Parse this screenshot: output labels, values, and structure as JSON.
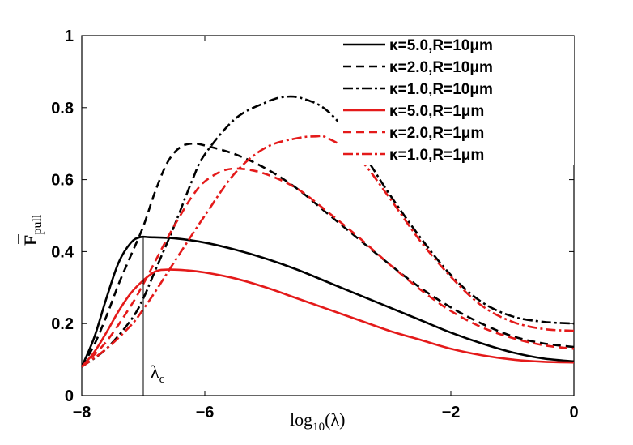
{
  "chart_data": {
    "type": "line",
    "title": "",
    "xlabel": "log",
    "xlabel_sub": "10",
    "xlabel_arg": "(λ)",
    "ylabel": "F",
    "ylabel_sub": "pull",
    "xlim": [
      -8,
      0
    ],
    "ylim": [
      0,
      1
    ],
    "xticks": [
      -8,
      -6,
      -2,
      0
    ],
    "xtick_labels": [
      "−8",
      "−6",
      "−2",
      "0"
    ],
    "yticks": [
      0,
      0.2,
      0.4,
      0.6,
      0.8,
      1
    ],
    "ytick_labels": [
      "0",
      "0.2",
      "0.4",
      "0.6",
      "0.8",
      "1"
    ],
    "grid": false,
    "legend_position": "top-right",
    "annotation": {
      "text": "λ",
      "sub": "c",
      "x": -7,
      "y_top": 0.44
    },
    "series": [
      {
        "name": "κ=5.0,R=10μm",
        "color": "#000000",
        "dash": "solid",
        "x": [
          -8,
          -7.8,
          -7.6,
          -7.4,
          -7.2,
          -7.05,
          -6.9,
          -6.5,
          -6.0,
          -5.5,
          -5.0,
          -4.5,
          -4.0,
          -3.5,
          -3.0,
          -2.5,
          -2.0,
          -1.5,
          -1.0,
          -0.5,
          0
        ],
        "y": [
          0.08,
          0.16,
          0.27,
          0.37,
          0.425,
          0.44,
          0.44,
          0.437,
          0.425,
          0.405,
          0.38,
          0.35,
          0.315,
          0.28,
          0.245,
          0.21,
          0.175,
          0.145,
          0.12,
          0.103,
          0.095
        ]
      },
      {
        "name": "κ=2.0,R=10μm",
        "color": "#000000",
        "dash": "dash",
        "x": [
          -8,
          -7.8,
          -7.6,
          -7.4,
          -7.2,
          -7.0,
          -6.8,
          -6.6,
          -6.4,
          -6.2,
          -6.0,
          -5.5,
          -5.0,
          -4.5,
          -4.0,
          -3.5,
          -3.0,
          -2.5,
          -2.0,
          -1.5,
          -1.0,
          -0.5,
          0
        ],
        "y": [
          0.08,
          0.14,
          0.22,
          0.31,
          0.39,
          0.47,
          0.57,
          0.65,
          0.69,
          0.7,
          0.695,
          0.67,
          0.63,
          0.575,
          0.505,
          0.435,
          0.365,
          0.3,
          0.245,
          0.2,
          0.165,
          0.145,
          0.135
        ]
      },
      {
        "name": "κ=1.0,R=10μm",
        "color": "#000000",
        "dash": "dashdot",
        "x": [
          -8,
          -7.6,
          -7.2,
          -7.0,
          -6.8,
          -6.5,
          -6.2,
          -6.0,
          -5.5,
          -5.0,
          -4.7,
          -4.4,
          -4.0,
          -3.5,
          -3.0,
          -2.5,
          -2.0,
          -1.5,
          -1.0,
          -0.5,
          0
        ],
        "y": [
          0.08,
          0.13,
          0.21,
          0.27,
          0.35,
          0.47,
          0.6,
          0.67,
          0.77,
          0.815,
          0.83,
          0.825,
          0.79,
          0.69,
          0.56,
          0.44,
          0.335,
          0.26,
          0.22,
          0.205,
          0.2
        ]
      },
      {
        "name": "κ=5.0,R=1μm",
        "color": "#e41a1a",
        "dash": "solid",
        "x": [
          -8,
          -7.8,
          -7.6,
          -7.4,
          -7.2,
          -7.0,
          -6.8,
          -6.6,
          -6.3,
          -6.0,
          -5.5,
          -5.0,
          -4.5,
          -4.0,
          -3.5,
          -3.0,
          -2.5,
          -2.0,
          -1.5,
          -1.0,
          -0.5,
          0
        ],
        "y": [
          0.08,
          0.12,
          0.175,
          0.235,
          0.285,
          0.32,
          0.345,
          0.35,
          0.348,
          0.342,
          0.325,
          0.3,
          0.27,
          0.24,
          0.21,
          0.18,
          0.155,
          0.13,
          0.112,
          0.1,
          0.094,
          0.092
        ]
      },
      {
        "name": "κ=2.0,R=1μm",
        "color": "#e41a1a",
        "dash": "dash",
        "x": [
          -8,
          -7.6,
          -7.2,
          -7.0,
          -6.8,
          -6.6,
          -6.4,
          -6.2,
          -6.0,
          -5.7,
          -5.4,
          -5.0,
          -4.5,
          -4.0,
          -3.5,
          -3.0,
          -2.5,
          -2.0,
          -1.5,
          -1.0,
          -0.5,
          0
        ],
        "y": [
          0.08,
          0.15,
          0.25,
          0.31,
          0.375,
          0.44,
          0.5,
          0.555,
          0.595,
          0.625,
          0.63,
          0.615,
          0.575,
          0.51,
          0.44,
          0.365,
          0.295,
          0.235,
          0.19,
          0.16,
          0.14,
          0.13
        ]
      },
      {
        "name": "κ=1.0,R=1μm",
        "color": "#e41a1a",
        "dash": "dashdot",
        "x": [
          -8,
          -7.6,
          -7.2,
          -7.0,
          -6.8,
          -6.5,
          -6.0,
          -5.5,
          -5.0,
          -4.5,
          -4.2,
          -4.0,
          -3.5,
          -3.0,
          -2.5,
          -2.0,
          -1.5,
          -1.0,
          -0.5,
          0
        ],
        "y": [
          0.08,
          0.13,
          0.195,
          0.24,
          0.29,
          0.37,
          0.5,
          0.62,
          0.69,
          0.715,
          0.72,
          0.715,
          0.66,
          0.55,
          0.43,
          0.33,
          0.25,
          0.205,
          0.185,
          0.18
        ]
      }
    ]
  }
}
